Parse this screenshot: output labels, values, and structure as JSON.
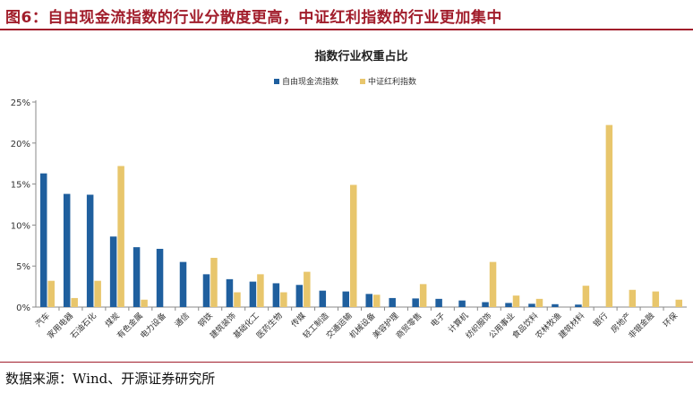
{
  "figure": {
    "title": "图6：自由现金流指数的行业分散度更高，中证红利指数的行业更加集中",
    "source": "数据来源：Wind、开源证券研究所"
  },
  "colors": {
    "series1": "#1f5f9e",
    "series2": "#e8c66c",
    "accent": "#a11d2b",
    "grid": "#d9d9d9"
  },
  "chart_data": {
    "type": "bar",
    "title": "指数行业权重占比",
    "ylim": [
      0,
      25
    ],
    "yticks": [
      "0%",
      "5%",
      "10%",
      "15%",
      "20%",
      "25%"
    ],
    "ytick_values": [
      0,
      5,
      10,
      15,
      20,
      25
    ],
    "legend_position": "top-center",
    "grid": false,
    "categories": [
      "汽车",
      "家用电器",
      "石油石化",
      "煤炭",
      "有色金属",
      "电力设备",
      "通信",
      "钢铁",
      "建筑装饰",
      "基础化工",
      "医药生物",
      "传媒",
      "轻工制造",
      "交通运输",
      "机械设备",
      "美容护理",
      "商贸零售",
      "电子",
      "计算机",
      "纺织服饰",
      "公用事业",
      "食品饮料",
      "农林牧渔",
      "建筑材料",
      "银行",
      "房地产",
      "非银金融",
      "环保"
    ],
    "series": [
      {
        "name": "自由现金流指数",
        "values": [
          16.3,
          13.8,
          13.7,
          8.6,
          7.3,
          7.1,
          5.5,
          4.0,
          3.4,
          3.1,
          2.9,
          2.7,
          2.0,
          1.9,
          1.6,
          1.1,
          1.05,
          1.0,
          0.8,
          0.6,
          0.5,
          0.4,
          0.35,
          0.3,
          0.0,
          0.0,
          0.0,
          0.0
        ]
      },
      {
        "name": "中证红利指数",
        "values": [
          3.2,
          1.1,
          3.2,
          17.2,
          0.9,
          0.0,
          0.0,
          6.0,
          1.8,
          4.0,
          1.8,
          4.3,
          0.0,
          14.9,
          1.5,
          0.0,
          2.8,
          0.0,
          0.0,
          5.5,
          1.4,
          1.0,
          0.0,
          2.6,
          22.2,
          2.1,
          1.9,
          0.9
        ]
      }
    ]
  }
}
